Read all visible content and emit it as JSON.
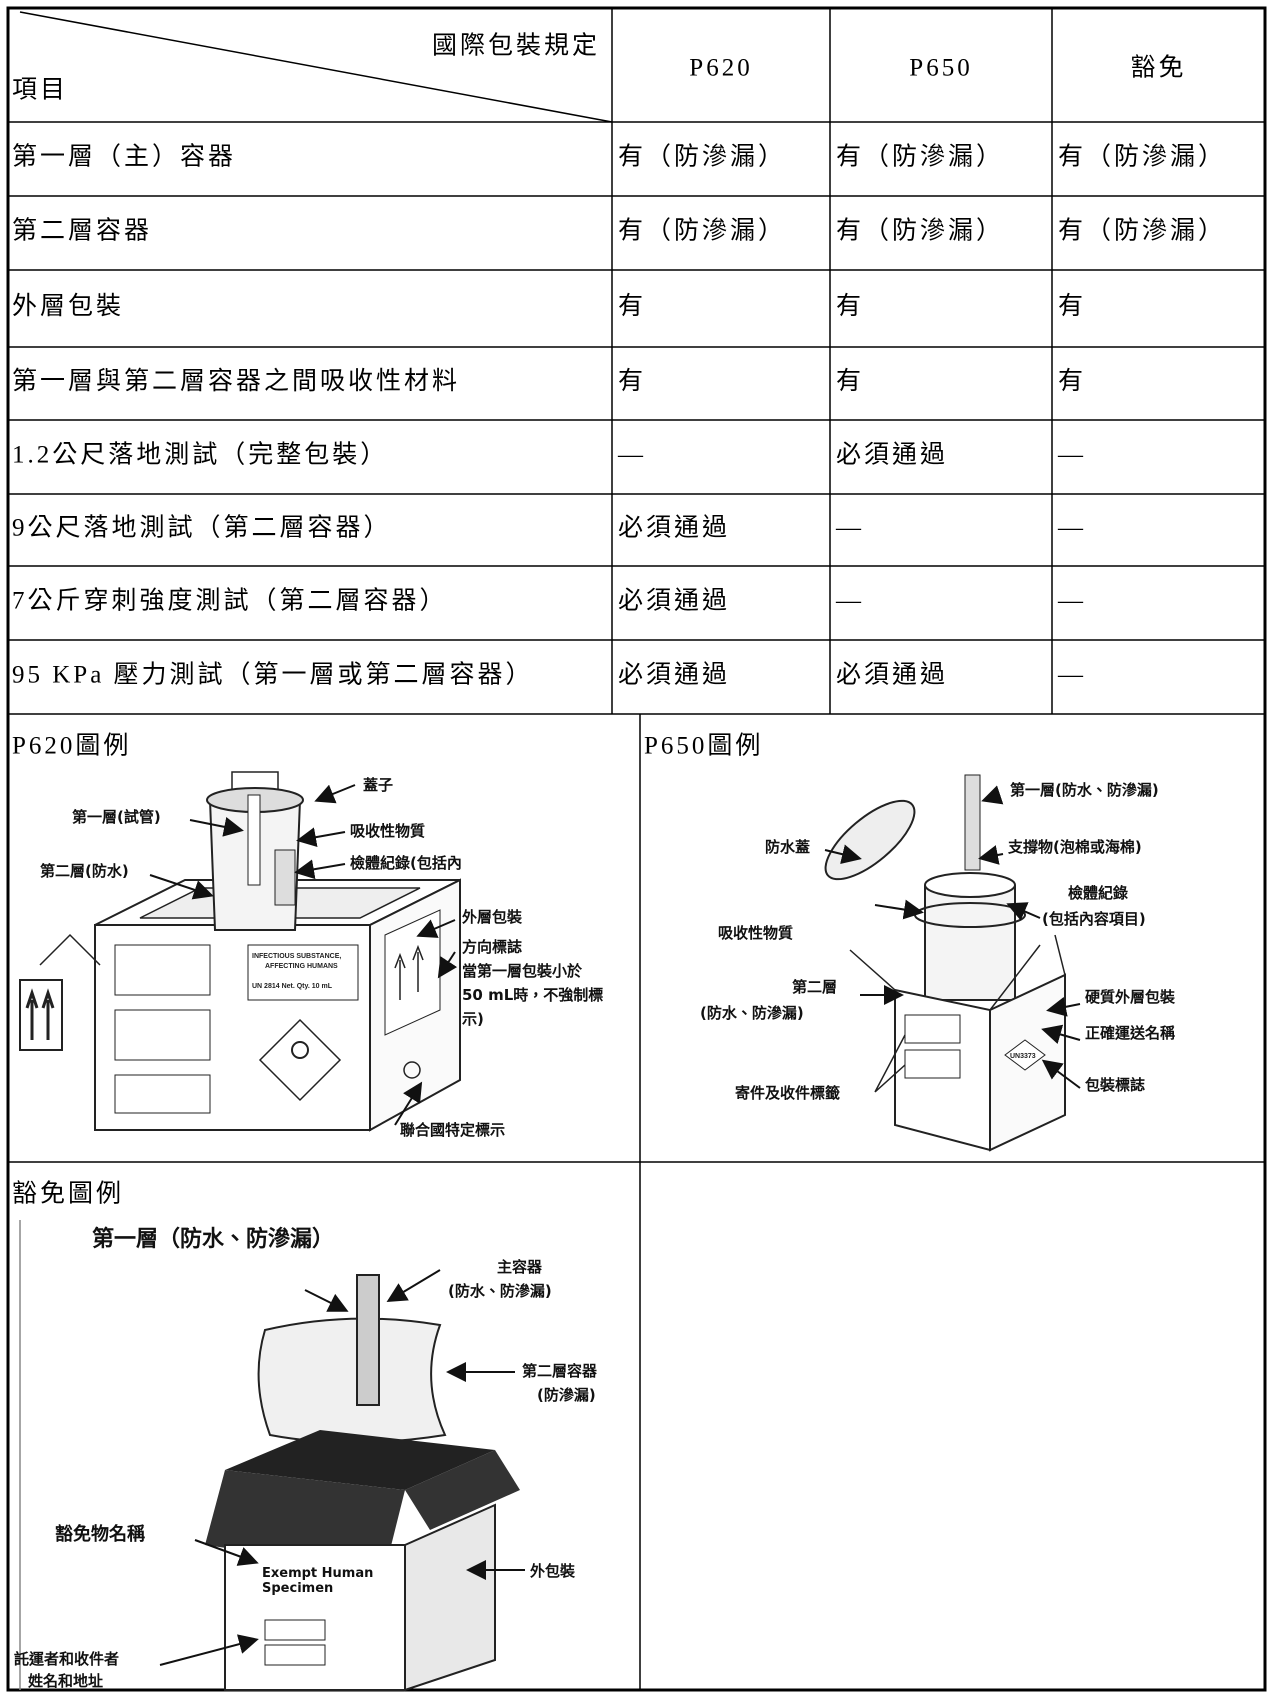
{
  "table": {
    "header": {
      "corner_top": "國際包裝規定",
      "corner_bottom": "項目",
      "columns": [
        "P620",
        "P650",
        "豁免"
      ]
    },
    "rows": [
      [
        "第一層（主）容器",
        "有（防滲漏）",
        "有（防滲漏）",
        "有（防滲漏）"
      ],
      [
        "第二層容器",
        "有（防滲漏）",
        "有（防滲漏）",
        "有（防滲漏）"
      ],
      [
        "外層包裝",
        "有",
        "有",
        "有"
      ],
      [
        "第一層與第二層容器之間吸收性材料",
        "有",
        "有",
        "有"
      ],
      [
        "1.2公尺落地測試（完整包裝）",
        "—",
        "必須通過",
        "—"
      ],
      [
        "9公尺落地測試（第二層容器）",
        "必須通過",
        "—",
        "—"
      ],
      [
        "7公斤穿刺強度測試（第二層容器）",
        "必須通過",
        "—",
        "—"
      ],
      [
        "95 KPa 壓力測試（第一層或第二層容器）",
        "必須通過",
        "必須通過",
        "—"
      ]
    ]
  },
  "figures": {
    "p620": {
      "title": "P620圖例",
      "labels": [
        "蓋子",
        "第一層(試管)",
        "吸收性物質",
        "檢體紀錄(包括內",
        "第二層(防水)",
        "外層包裝",
        "方向標誌",
        "當第一層包裝小於",
        "50 mL時，不強制標",
        "示)",
        "聯合國特定標示",
        "INFECTIOUS SUBSTANCE,",
        "AFFECTING HUMANS",
        "UN 2814  Net. Qty. 10 mL"
      ]
    },
    "p650": {
      "title": "P650圖例",
      "labels": [
        "第一層(防水、防滲漏)",
        "防水蓋",
        "支撐物(泡棉或海棉)",
        "檢體紀錄",
        "(包括內容項目)",
        "吸收性物質",
        "第二層",
        "(防水、防滲漏)",
        "硬質外層包裝",
        "正確運送名稱",
        "寄件及收件標籤",
        "包裝標誌",
        "UN3373"
      ]
    },
    "exempt": {
      "title": "豁免圖例",
      "labels": [
        "第一層（防水、防滲漏）",
        "主容器",
        "(防水、防滲漏)",
        "第二層容器",
        "(防滲漏)",
        "豁免物名稱",
        "Exempt Human",
        "Specimen",
        "外包裝",
        "託運者和收件者",
        "姓名和地址"
      ]
    }
  }
}
